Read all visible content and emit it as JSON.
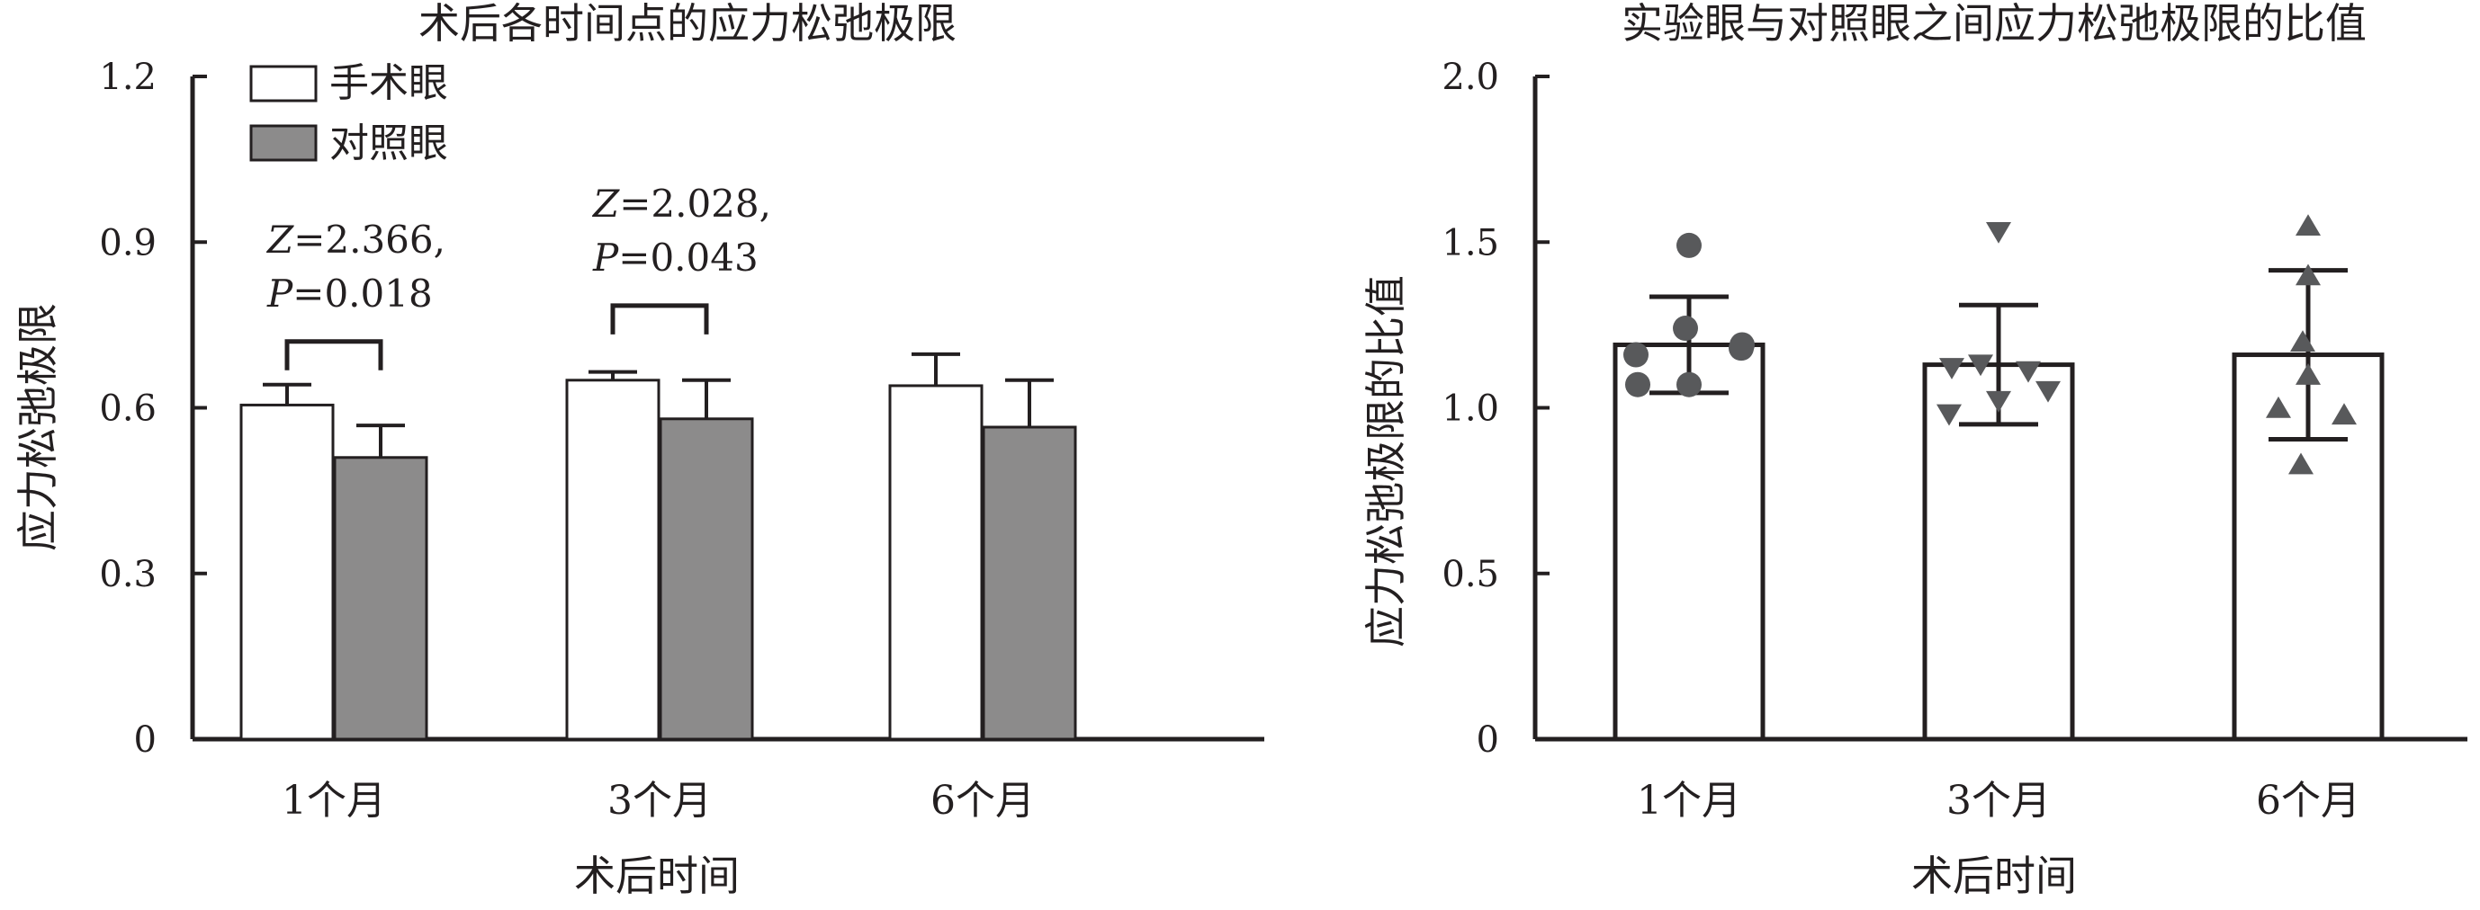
{
  "chart_data": [
    {
      "type": "bar",
      "title": "术后各时间点的应力松弛极限",
      "xlabel": "术后时间",
      "ylabel": "应力松弛极限",
      "categories": [
        "1个月",
        "3个月",
        "6个月"
      ],
      "ylim": [
        0,
        1.2
      ],
      "yticks": [
        "0",
        "0.3",
        "0.6",
        "0.9",
        "1.2"
      ],
      "ytick_values": [
        0,
        0.3,
        0.6,
        0.9,
        1.2
      ],
      "legend_position": "top-left",
      "series": [
        {
          "name": "手术眼",
          "color": "#ffffff",
          "values": [
            0.605,
            0.65,
            0.64
          ],
          "errors": [
            0.037,
            0.015,
            0.057
          ]
        },
        {
          "name": "对照眼",
          "color": "#8c8b8b",
          "values": [
            0.51,
            0.58,
            0.565
          ],
          "errors": [
            0.058,
            0.07,
            0.085
          ]
        }
      ],
      "annotations": [
        {
          "category": "1个月",
          "line1_italic": "Z",
          "line1_rest": "=2.366,",
          "line2_italic": "P",
          "line2_rest": "=0.018",
          "bracket_level": 0.72
        },
        {
          "category": "3个月",
          "line1_italic": "Z",
          "line1_rest": "=2.028,",
          "line2_italic": "P",
          "line2_rest": "=0.043",
          "bracket_level": 0.785
        }
      ]
    },
    {
      "type": "bar",
      "title": "实验眼与对照眼之间应力松弛极限的比值",
      "xlabel": "术后时间",
      "ylabel": "应力松弛极限的比值",
      "categories": [
        "1个月",
        "3个月",
        "6个月"
      ],
      "ylim": [
        0,
        2.0
      ],
      "yticks": [
        "0",
        "0.5",
        "1.0",
        "1.5",
        "2.0"
      ],
      "ytick_values": [
        0,
        0.5,
        1.0,
        1.5,
        2.0
      ],
      "bar_fill": "#ffffff",
      "point_color": "#58595b",
      "values": [
        1.19,
        1.13,
        1.16
      ],
      "errors": [
        0.145,
        0.18,
        0.255
      ],
      "point_markers": [
        "circle",
        "triangle-down",
        "triangle-up"
      ],
      "points": [
        [
          1.49,
          1.16,
          1.24,
          1.19,
          1.07,
          1.07,
          1.18
        ],
        [
          1.53,
          1.12,
          1.13,
          1.11,
          0.98,
          1.02,
          1.05
        ],
        [
          1.55,
          1.4,
          1.2,
          1.1,
          1.0,
          0.98,
          0.83
        ]
      ]
    }
  ]
}
